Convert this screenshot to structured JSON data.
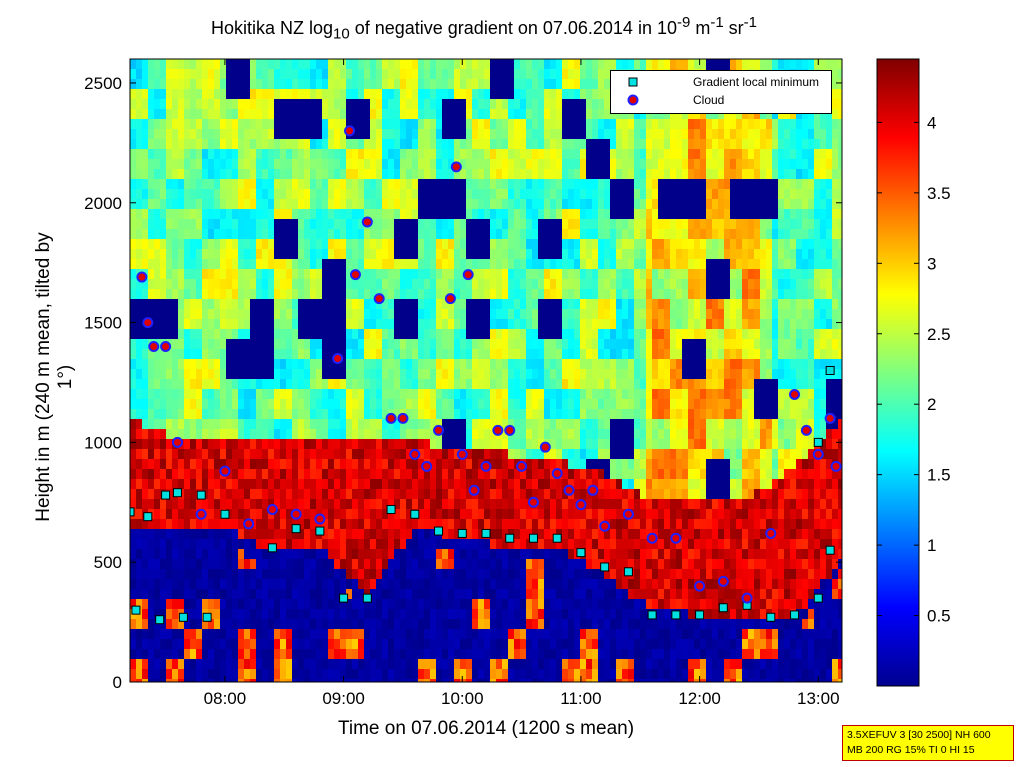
{
  "title_parts": [
    "Hokitika NZ log",
    "10",
    " of negative gradient on 07.06.2014 in 10",
    "-9",
    " m",
    "-1",
    " sr",
    "-1"
  ],
  "xlabel": "Time on 07.06.2014 (1200 s mean)",
  "ylabel": "Height in m (240 m mean, tilted by 1°)",
  "legend": {
    "gradient_label": "Gradient local minimum",
    "cloud_label": "Cloud"
  },
  "info_box": {
    "line1": "3.5XEFUV 3 [30 2500] NH 600",
    "line2": "MB 200 RG 15% TI 0 HI 15"
  },
  "colors": {
    "gradient_marker_fill": "#00e0e0",
    "cloud_marker_fill": "#e00000",
    "cloud_marker_edge": "#2020ff"
  },
  "chart_data": {
    "type": "heatmap",
    "x_unit": "hours of day",
    "x_range": [
      7.2,
      13.2
    ],
    "y_range": [
      0,
      2600
    ],
    "x_ticks": [
      8,
      9,
      10,
      11,
      12,
      13
    ],
    "x_tick_labels": [
      "08:00",
      "09:00",
      "10:00",
      "11:00",
      "12:00",
      "13:00"
    ],
    "y_ticks": [
      0,
      500,
      1000,
      1500,
      2000,
      2500
    ],
    "y_tick_labels": [
      "0",
      "500",
      "1000",
      "1500",
      "2000",
      "2500"
    ],
    "colorbar": {
      "colormap": "jet",
      "range": [
        0,
        4.45
      ],
      "ticks": [
        0.5,
        1,
        1.5,
        2,
        2.5,
        3,
        3.5,
        4
      ],
      "tick_labels": [
        "0.5",
        "1",
        "1.5",
        "2",
        "2.5",
        "3",
        "3.5",
        "4"
      ]
    },
    "series": [
      {
        "name": "Gradient local minimum",
        "x": [
          7.2,
          7.35,
          7.5,
          7.6,
          7.8,
          8.0,
          8.2,
          8.4,
          8.6,
          8.8,
          9.0,
          9.2,
          9.4,
          9.6,
          9.8,
          10.0,
          10.2,
          10.4,
          10.6,
          10.8,
          11.0,
          11.2,
          11.4,
          11.6,
          11.8,
          12.0,
          12.2,
          12.4,
          12.6,
          12.8,
          13.0,
          13.1,
          7.25,
          7.45,
          7.65,
          7.85,
          13.0,
          13.1
        ],
        "y": [
          710,
          690,
          780,
          790,
          780,
          700,
          660,
          560,
          640,
          630,
          350,
          350,
          720,
          700,
          630,
          620,
          620,
          600,
          600,
          600,
          540,
          480,
          460,
          280,
          280,
          280,
          310,
          320,
          270,
          280,
          350,
          550,
          300,
          260,
          270,
          270,
          1000,
          1300
        ]
      },
      {
        "name": "Cloud",
        "x": [
          7.3,
          7.35,
          7.4,
          7.5,
          7.6,
          7.8,
          8.0,
          8.2,
          8.4,
          8.6,
          8.8,
          8.95,
          9.05,
          9.1,
          9.2,
          9.3,
          9.4,
          9.5,
          9.6,
          9.7,
          9.8,
          9.9,
          9.95,
          10.0,
          10.05,
          10.1,
          10.2,
          10.3,
          10.4,
          10.5,
          10.6,
          10.7,
          10.8,
          10.9,
          11.0,
          11.1,
          11.2,
          11.4,
          11.6,
          11.8,
          12.0,
          12.2,
          12.4,
          12.6,
          12.8,
          12.9,
          13.0,
          13.1,
          13.15
        ],
        "y": [
          1690,
          1500,
          1400,
          1400,
          1000,
          700,
          880,
          660,
          720,
          700,
          680,
          1350,
          2300,
          1700,
          1920,
          1600,
          1100,
          1100,
          950,
          900,
          1050,
          1600,
          2150,
          950,
          1700,
          800,
          900,
          1050,
          1050,
          900,
          750,
          980,
          870,
          800,
          740,
          800,
          650,
          700,
          600,
          600,
          400,
          420,
          350,
          620,
          1200,
          1050,
          950,
          1100,
          900
        ]
      }
    ]
  }
}
